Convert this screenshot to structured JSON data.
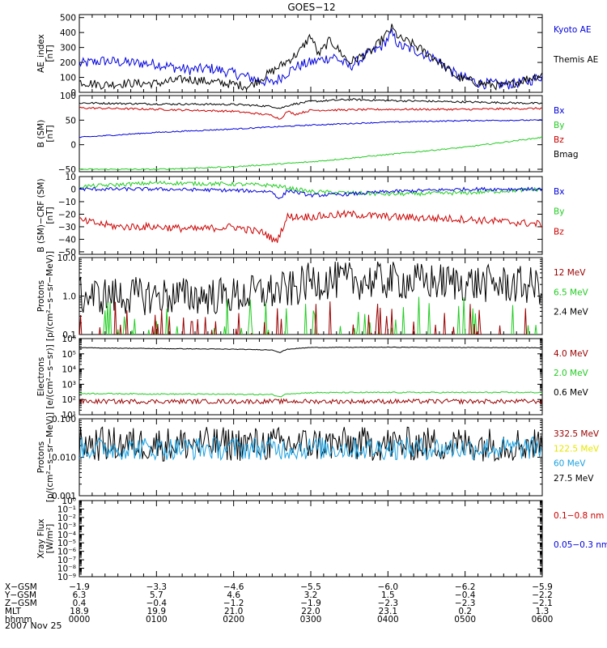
{
  "title": "GOES−12",
  "date_label": "2007 Nov 25",
  "colors": {
    "black": "#000000",
    "blue": "#0000dd",
    "red": "#cc0000",
    "green": "#22cc22",
    "darkred": "#990000",
    "cyan": "#1aa0e0",
    "yellow": "#e6e600"
  },
  "chart_data": [
    {
      "type": "line",
      "id": "ae",
      "ylabel": "AE_index\n[nT]",
      "yticks": [
        "0",
        "100",
        "200",
        "300",
        "400",
        "500"
      ],
      "ylim": [
        0,
        520
      ],
      "scale": "linear",
      "x_hours": [
        0,
        6
      ],
      "legend": [
        {
          "label": "Kyoto AE",
          "color": "#0000dd"
        },
        {
          "label": "Themis AE",
          "color": "#000000"
        }
      ],
      "series": [
        {
          "name": "Kyoto AE",
          "color": "#0000dd",
          "x": [
            0,
            0.3,
            0.6,
            1.0,
            1.4,
            1.7,
            1.9,
            2.2,
            2.5,
            2.8,
            3.0,
            3.3,
            3.5,
            3.7,
            3.9,
            4.05,
            4.15,
            4.3,
            4.6,
            4.9,
            5.2,
            5.5,
            5.8,
            6.0
          ],
          "y": [
            190,
            210,
            200,
            190,
            150,
            160,
            140,
            100,
            60,
            170,
            200,
            240,
            170,
            240,
            300,
            390,
            310,
            290,
            230,
            110,
            60,
            50,
            70,
            110
          ],
          "noise": 18
        },
        {
          "name": "Themis AE",
          "color": "#000000",
          "x": [
            0,
            0.3,
            0.6,
            1.0,
            1.4,
            1.7,
            1.9,
            2.2,
            2.5,
            2.7,
            2.85,
            3.0,
            3.1,
            3.25,
            3.5,
            3.8,
            3.9,
            4.05,
            4.15,
            4.3,
            4.6,
            4.9,
            5.2,
            5.5,
            5.8,
            6.0
          ],
          "y": [
            70,
            50,
            60,
            60,
            90,
            70,
            60,
            40,
            140,
            210,
            270,
            380,
            250,
            350,
            200,
            280,
            340,
            430,
            360,
            330,
            230,
            100,
            60,
            40,
            90,
            120
          ],
          "noise": 15
        }
      ]
    },
    {
      "type": "line",
      "id": "bsm",
      "ylabel": "B (SM)\n[nT]",
      "yticks": [
        "−50",
        "0",
        "50",
        "100"
      ],
      "ylim": [
        -55,
        100
      ],
      "scale": "linear",
      "x_hours": [
        0,
        6
      ],
      "legend": [
        {
          "label": "Bx",
          "color": "#0000dd"
        },
        {
          "label": "By",
          "color": "#22cc22"
        },
        {
          "label": "Bz",
          "color": "#cc0000"
        },
        {
          "label": "Bmag",
          "color": "#000000"
        }
      ],
      "series": [
        {
          "name": "Bmag",
          "color": "#000000",
          "x": [
            0,
            1,
            2,
            2.5,
            2.6,
            2.75,
            3.0,
            3.5,
            4,
            5,
            6
          ],
          "y": [
            85,
            83,
            82,
            78,
            74,
            82,
            88,
            92,
            90,
            87,
            84
          ],
          "noise": 1
        },
        {
          "name": "Bz",
          "color": "#cc0000",
          "x": [
            0,
            1,
            2,
            2.5,
            2.6,
            2.7,
            2.8,
            3.0,
            4,
            5,
            6
          ],
          "y": [
            75,
            72,
            68,
            60,
            52,
            68,
            62,
            70,
            72,
            72,
            74
          ],
          "noise": 1
        },
        {
          "name": "Bx",
          "color": "#0000dd",
          "x": [
            0,
            1,
            2,
            3,
            4,
            5,
            6
          ],
          "y": [
            15,
            25,
            32,
            40,
            46,
            49,
            50
          ],
          "noise": 0.6
        },
        {
          "name": "By",
          "color": "#22cc22",
          "x": [
            0,
            1,
            2,
            3,
            4,
            5,
            6
          ],
          "y": [
            -50,
            -50,
            -45,
            -35,
            -20,
            -5,
            15
          ],
          "noise": 0.6
        }
      ]
    },
    {
      "type": "line",
      "id": "dsm",
      "ylabel": "B (SM)−CRF (SM)\n[nT]",
      "yticks": [
        "−50",
        "−40",
        "−30",
        "−20",
        "−10",
        "0",
        "10"
      ],
      "ylim": [
        -52,
        10
      ],
      "scale": "linear",
      "x_hours": [
        0,
        6
      ],
      "legend": [
        {
          "label": "Bx",
          "color": "#0000dd"
        },
        {
          "label": "By",
          "color": "#22cc22"
        },
        {
          "label": "Bz",
          "color": "#cc0000"
        }
      ],
      "series": [
        {
          "name": "By",
          "color": "#22cc22",
          "x": [
            0,
            1,
            2,
            2.5,
            3,
            3.5,
            4,
            5,
            6
          ],
          "y": [
            2,
            5,
            4,
            3,
            -2,
            -3,
            -4,
            -3,
            0
          ],
          "noise": 0.8
        },
        {
          "name": "Bx",
          "color": "#0000dd",
          "x": [
            0,
            1,
            2,
            2.5,
            2.6,
            2.7,
            3,
            3.5,
            4,
            5,
            6
          ],
          "y": [
            0,
            0,
            -1,
            -2,
            -8,
            -1,
            -5,
            -4,
            -2,
            0,
            0
          ],
          "noise": 0.7
        },
        {
          "name": "Bz",
          "color": "#cc0000",
          "x": [
            0,
            0.5,
            1,
            1.5,
            2,
            2.4,
            2.55,
            2.7,
            3.0,
            3.5,
            4,
            5,
            6
          ],
          "y": [
            -25,
            -30,
            -30,
            -32,
            -30,
            -35,
            -42,
            -22,
            -22,
            -20,
            -22,
            -24,
            -28
          ],
          "noise": 1.5
        }
      ]
    },
    {
      "type": "line",
      "id": "protons1",
      "ylabel": "Protons\n[p/(cm²−s−sr−MeV)]",
      "yticks": [
        "0.1",
        "1.0",
        "10.0"
      ],
      "ylim": [
        0.1,
        10
      ],
      "scale": "log",
      "x_hours": [
        0,
        6
      ],
      "legend": [
        {
          "label": "12 MeV",
          "color": "#990000"
        },
        {
          "label": "6.5 MeV",
          "color": "#22cc22"
        },
        {
          "label": "2.4 MeV",
          "color": "#000000"
        }
      ],
      "series": [
        {
          "name": "2.4 MeV",
          "color": "#000000",
          "x": [
            0,
            1,
            2,
            2.8,
            3,
            4,
            5,
            6
          ],
          "y": [
            1.0,
            1.0,
            1.0,
            1.5,
            2.5,
            2.5,
            2.2,
            1.8
          ],
          "noise": 0.5,
          "lognoise": true
        },
        {
          "name": "6.5 MeV",
          "color": "#22cc22",
          "x": [
            0,
            6
          ],
          "y": [
            0.12,
            0.12
          ],
          "noise": 0.5,
          "lognoise": true,
          "spiky": true
        },
        {
          "name": "12 MeV",
          "color": "#990000",
          "x": [
            0,
            6
          ],
          "y": [
            0.1,
            0.1
          ],
          "noise": 0.5,
          "lognoise": true,
          "spiky": true
        }
      ]
    },
    {
      "type": "line",
      "id": "electrons",
      "ylabel": "Electrons\n[e/(cm²−s−sr)]",
      "yticks": [
        "10¹",
        "10²",
        "10³",
        "10⁴",
        "10⁵",
        "10⁶"
      ],
      "ylim": [
        10,
        1000000
      ],
      "scale": "log",
      "x_hours": [
        0,
        6
      ],
      "legend": [
        {
          "label": "4.0 MeV",
          "color": "#990000"
        },
        {
          "label": "2.0 MeV",
          "color": "#22cc22"
        },
        {
          "label": "0.6 MeV",
          "color": "#000000"
        }
      ],
      "series": [
        {
          "name": "0.6 MeV",
          "color": "#000000",
          "x": [
            0,
            1,
            2,
            2.5,
            2.6,
            2.7,
            3,
            4,
            5,
            6
          ],
          "y": [
            250000,
            220000,
            200000,
            180000,
            120000,
            200000,
            260000,
            270000,
            260000,
            250000
          ],
          "noise": 0.02,
          "lognoise": true
        },
        {
          "name": "2.0 MeV",
          "color": "#22cc22",
          "x": [
            0,
            1,
            2,
            2.5,
            2.6,
            2.7,
            3,
            4,
            5,
            6
          ],
          "y": [
            250,
            230,
            220,
            210,
            150,
            240,
            280,
            290,
            290,
            290
          ],
          "noise": 0.04,
          "lognoise": true
        },
        {
          "name": "4.0 MeV",
          "color": "#990000",
          "x": [
            0,
            6
          ],
          "y": [
            75,
            75
          ],
          "noise": 0.15,
          "lognoise": true
        }
      ]
    },
    {
      "type": "line",
      "id": "protons2",
      "ylabel": "Protons\n[p/(cm²−s−sr−MeV)]",
      "yticks": [
        "0.001",
        "0.010",
        "0.100"
      ],
      "ylim": [
        0.001,
        0.1
      ],
      "scale": "log",
      "x_hours": [
        0,
        6
      ],
      "legend": [
        {
          "label": "332.5 MeV",
          "color": "#990000"
        },
        {
          "label": "122.5 MeV",
          "color": "#e6e600"
        },
        {
          "label": "60 MeV",
          "color": "#1aa0e0"
        },
        {
          "label": "27.5 MeV",
          "color": "#000000"
        }
      ],
      "series": [
        {
          "name": "27.5 MeV",
          "color": "#000000",
          "x": [
            0,
            6
          ],
          "y": [
            0.022,
            0.022
          ],
          "noise": 0.45,
          "lognoise": true
        },
        {
          "name": "60 MeV",
          "color": "#1aa0e0",
          "x": [
            0,
            6
          ],
          "y": [
            0.017,
            0.017
          ],
          "noise": 0.3,
          "lognoise": true
        }
      ]
    },
    {
      "type": "line",
      "id": "xray",
      "ylabel": "Xray  Flux\n[W/m²]",
      "yticks": [
        "10⁻⁹",
        "10⁻⁸",
        "10⁻⁷",
        "10⁻⁶",
        "10⁻⁵",
        "10⁻⁴",
        "10⁻³",
        "10⁻²",
        "10⁻¹",
        "10⁰"
      ],
      "ylim": [
        1e-09,
        1
      ],
      "scale": "log",
      "x_hours": [
        0,
        6
      ],
      "legend": [
        {
          "label": "0.1−0.8 nm",
          "color": "#cc0000"
        },
        {
          "label": "0.05−0.3 nm",
          "color": "#0000dd"
        }
      ],
      "series": []
    }
  ],
  "xaxis": {
    "row_labels": [
      "X−GSM",
      "Y−GSM",
      "Z−GSM",
      "MLT",
      "hhmm"
    ],
    "columns": [
      [
        "−1.9",
        "6.3",
        "0.4",
        "18.9",
        "0000"
      ],
      [
        "−3.3",
        "5.7",
        "−0.4",
        "19.9",
        "0100"
      ],
      [
        "−4.6",
        "4.6",
        "−1.2",
        "21.0",
        "0200"
      ],
      [
        "−5.5",
        "3.2",
        "−1.9",
        "22.0",
        "0300"
      ],
      [
        "−6.0",
        "1.5",
        "−2.3",
        "23.1",
        "0400"
      ],
      [
        "−6.2",
        "−0.4",
        "−2.3",
        "0.2",
        "0500"
      ],
      [
        "−5.9",
        "−2.2",
        "−2.1",
        "1.3",
        "0600"
      ]
    ]
  }
}
